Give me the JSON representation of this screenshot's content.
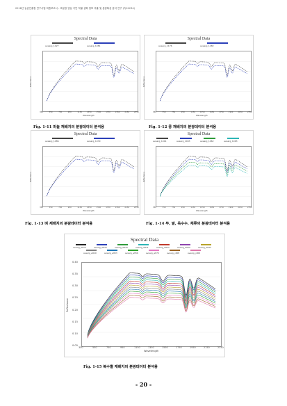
{
  "header": {
    "text": "2018년 농촌진흥청 연구사업 최종보고서 - 초분광 영상 기반 작물 생육 정보 추출 및 분광특성 분석 연구 (PJ01234)"
  },
  "panels": [
    {
      "title": "Spectral Data",
      "legend": [
        "avearg_1027",
        "avearg_1081"
      ],
      "colors": [
        "#444444",
        "#2b3fb8"
      ],
      "xticks": [
        "350",
        "550",
        "750",
        "950",
        "1150",
        "1350",
        "1550",
        "1750",
        "1950",
        "2150",
        "2350"
      ],
      "xlabel": "Wavelength",
      "ylabel": "Reflectance"
    },
    {
      "title": "Spectral Data",
      "legend": [
        "avearg_1176",
        "avearg_1182"
      ],
      "colors": [
        "#444444",
        "#2b3fb8"
      ],
      "xticks": [
        "350",
        "550",
        "750",
        "950",
        "1150",
        "1350",
        "1550",
        "1750",
        "1950",
        "2150",
        "2350"
      ],
      "xlabel": "Wavelength",
      "ylabel": "Reflectance"
    },
    {
      "title": "Spectral Data",
      "legend": [
        "avearg_1086",
        "avearg_1079"
      ],
      "colors": [
        "#444444",
        "#2b3fb8"
      ],
      "xticks": [
        "350",
        "550",
        "750",
        "950",
        "1150",
        "1350",
        "1550",
        "1750",
        "1950",
        "2150",
        "2350"
      ],
      "xlabel": "Wavelength",
      "ylabel": "Reflectance"
    },
    {
      "title": "Spectral Data",
      "legend": [
        "avearg_1001",
        "avearg_1003",
        "avearg_1062",
        "avearg_1063"
      ],
      "colors": [
        "#444444",
        "#2b3fb8",
        "#2e9b3a",
        "#2cb5b5"
      ],
      "xticks": [
        "350",
        "550",
        "750",
        "950",
        "1150",
        "1350",
        "1550",
        "1750",
        "1950",
        "2150",
        "2350"
      ],
      "xlabel": "Wavelength",
      "ylabel": "Reflectance"
    },
    {
      "title": "Spectral Data",
      "legend": [
        "avearg_w015",
        "avearg_w016",
        "avearg_w019",
        "avearg_w031",
        "avearg_w033",
        "avearg_w034",
        "avearg_w043",
        "avearg_w049",
        "avearg_w053",
        "avearg_w056",
        "avearg_w070",
        "avearg_y008",
        "avearg_y009"
      ],
      "colors": [
        "#222222",
        "#2b3fb8",
        "#2e9b3a",
        "#2cb5b5",
        "#c0392b",
        "#8e44ad",
        "#b8a22a",
        "#7f7f7f",
        "#1f77b4",
        "#2ca02c",
        "#e377c2",
        "#9a6324",
        "#dd77aa"
      ],
      "xticks": [
        "350",
        "550",
        "750",
        "950",
        "1150",
        "1350",
        "1550",
        "1750",
        "1950",
        "2150",
        "2350"
      ],
      "yticks": [
        "0.40",
        "0.35",
        "0.30",
        "0.25",
        "0.20",
        "0.15",
        "0.10",
        "0.05"
      ],
      "xlabel": "Wavelength",
      "ylabel": "Reflectance"
    }
  ],
  "captions": [
    "Fig. 1-11 마늘 재배지의 분광데이터 분석용",
    "Fig. 1-12 콩 재배지의 분광데이터 분석용",
    "Fig. 1-13 벼 재배지의 분광데이터 분석용",
    "Fig. 1-14 무, 밭, 옥수수, 채류의 분광데이터 분석용",
    "Fig. 1-15 복수별 재배지의 분광데이터 분석용"
  ],
  "page_number": "- 20 -"
}
